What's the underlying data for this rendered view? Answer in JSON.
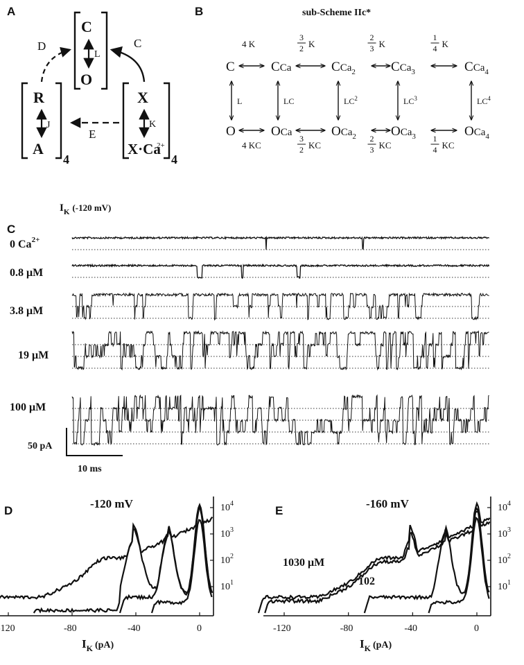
{
  "panels": {
    "A": {
      "letter": "A",
      "states": {
        "C": "C",
        "O": "O",
        "R": "R",
        "A": "A",
        "X": "X",
        "Xca": "X·Ca",
        "ca_sup": "2+"
      },
      "rates": {
        "L": "L",
        "J": "J",
        "K": "K"
      },
      "transitions": {
        "D": "D",
        "C": "C",
        "E": "E"
      },
      "subscript": "4"
    },
    "B": {
      "letter": "B",
      "title": "sub-Scheme IIc*",
      "top_states": [
        "C",
        "CCa",
        "CCa",
        "CCa",
        "CCa"
      ],
      "top_subs": [
        "",
        "",
        "2",
        "3",
        "4"
      ],
      "bottom_states": [
        "O",
        "OCa",
        "OCa",
        "OCa",
        "OCa"
      ],
      "bottom_subs": [
        "",
        "",
        "2",
        "3",
        "4"
      ],
      "top_rates": [
        "4 K",
        "K",
        "K",
        "K"
      ],
      "top_fracs": [
        {
          "num": "",
          "den": ""
        },
        {
          "num": "3",
          "den": "2"
        },
        {
          "num": "2",
          "den": "3"
        },
        {
          "num": "1",
          "den": "4"
        }
      ],
      "bottom_rates": [
        "4 KC",
        "KC",
        "KC",
        "KC"
      ],
      "bottom_fracs": [
        {
          "num": "",
          "den": ""
        },
        {
          "num": "3",
          "den": "2"
        },
        {
          "num": "2",
          "den": "3"
        },
        {
          "num": "1",
          "den": "4"
        }
      ],
      "vertical_rates": [
        "L",
        "LC",
        "LC",
        "LC",
        "LC"
      ],
      "vertical_sups": [
        "",
        "",
        "2",
        "3",
        "4"
      ]
    },
    "C": {
      "letter": "C",
      "title_main": "I",
      "title_sub": "K",
      "title_rest": "(-120 mV)",
      "traces": [
        {
          "label": "0 Ca",
          "label_sup": "2+",
          "levels": 1
        },
        {
          "label": "0.8 μM",
          "label_sup": "",
          "levels": 1
        },
        {
          "label": "3.8 μM",
          "label_sup": "",
          "levels": 2
        },
        {
          "label": "19 μM",
          "label_sup": "",
          "levels": 3
        },
        {
          "label": "100 μM",
          "label_sup": "",
          "levels": 4
        }
      ],
      "scale_current": "50 pA",
      "scale_time": "10 ms"
    },
    "D": {
      "letter": "D",
      "voltage": "-120 mV",
      "x_ticks": [
        "-120",
        "-80",
        "-40",
        "0"
      ],
      "y_ticks": [
        {
          "b": "10",
          "e": "4"
        },
        {
          "b": "10",
          "e": "3"
        },
        {
          "b": "10",
          "e": "2"
        },
        {
          "b": "10",
          "e": "1"
        }
      ],
      "xlabel_main": "I",
      "xlabel_sub": "K",
      "xlabel_rest": "(pA)"
    },
    "E": {
      "letter": "E",
      "voltage": "-160 mV",
      "curve_labels": [
        "1030 μM",
        "102"
      ],
      "x_ticks": [
        "-120",
        "-80",
        "-40",
        "0"
      ],
      "y_ticks": [
        {
          "b": "10",
          "e": "4"
        },
        {
          "b": "10",
          "e": "3"
        },
        {
          "b": "10",
          "e": "2"
        },
        {
          "b": "10",
          "e": "1"
        }
      ],
      "xlabel_main": "I",
      "xlabel_sub": "K",
      "xlabel_rest": "(pA)"
    }
  }
}
